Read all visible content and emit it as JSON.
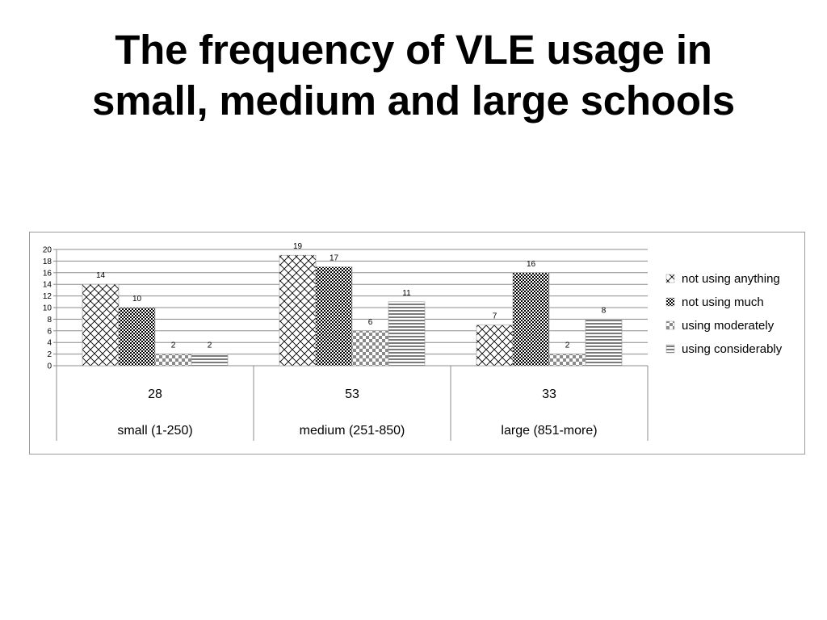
{
  "slide": {
    "title_line1": "The frequency of VLE usage in",
    "title_line2": "small, medium and large schools"
  },
  "chart_data": {
    "type": "bar",
    "title": "",
    "xlabel": "",
    "ylabel": "",
    "ylim": [
      0,
      20
    ],
    "ytick_step": 2,
    "grid": true,
    "legend_position": "right",
    "categories": [
      "small (1-250)",
      "medium (251-850)",
      "large (851-more)"
    ],
    "category_counts": [
      "28",
      "53",
      "33"
    ],
    "series": [
      {
        "name": "not using anything",
        "values": [
          14,
          19,
          7
        ],
        "pattern": "crosshatch-light"
      },
      {
        "name": "not using much",
        "values": [
          10,
          17,
          16
        ],
        "pattern": "checker-dark"
      },
      {
        "name": "using moderately",
        "values": [
          2,
          6,
          2
        ],
        "pattern": "checker-large"
      },
      {
        "name": "using considerably",
        "values": [
          2,
          11,
          8
        ],
        "pattern": "horizontal-stripes"
      }
    ],
    "colors": {
      "grid": "#8c8c8c",
      "ink": "#000000",
      "frame": "#9a9a9a"
    }
  }
}
